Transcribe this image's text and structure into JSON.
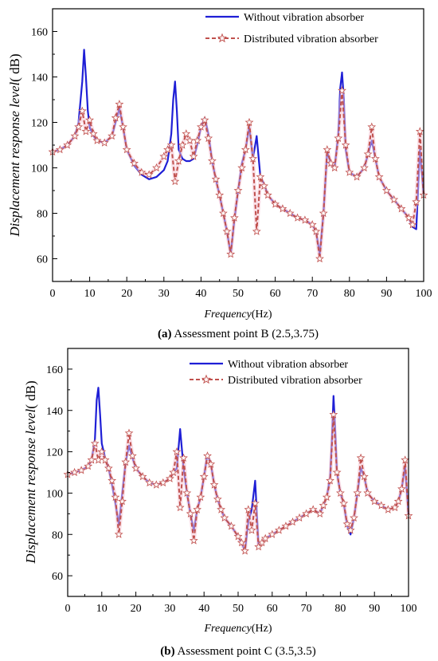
{
  "chart_data": [
    {
      "type": "line",
      "caption_label": "(a)",
      "caption_text": " Assessment point B (2.5,3.75)",
      "xlabel_italic": "Frequency",
      "xlabel_unit": "(Hz)",
      "ylabel": "Displacement  response level",
      "ylabel_unit": "( dB)",
      "xlim": [
        0,
        100
      ],
      "ylim": [
        50,
        170
      ],
      "xticks": [
        0,
        10,
        20,
        30,
        40,
        50,
        60,
        70,
        80,
        90,
        100
      ],
      "yticks": [
        60,
        80,
        100,
        120,
        140,
        160
      ],
      "legend_position": "top-right",
      "series": [
        {
          "name": "Without vibration absorber",
          "color": "#1f1fd6",
          "style": "solid",
          "x": [
            0,
            2,
            4,
            6,
            7,
            8,
            8.5,
            9,
            9.5,
            10,
            11,
            12,
            14,
            16,
            17,
            18,
            19,
            20,
            22,
            24,
            26,
            28,
            30,
            31,
            32,
            32.5,
            33,
            33.5,
            34,
            35,
            36,
            37,
            38,
            39,
            40,
            41,
            42,
            43,
            44,
            45,
            46,
            47,
            48,
            49,
            50,
            51,
            52,
            53,
            54,
            55,
            56,
            57,
            58,
            60,
            62,
            64,
            66,
            68,
            70,
            71,
            72,
            73,
            74,
            75,
            76,
            77,
            77.5,
            78,
            78.5,
            79,
            80,
            82,
            84,
            85,
            86,
            87,
            88,
            90,
            92,
            94,
            96,
            97,
            98,
            99,
            100
          ],
          "values": [
            107,
            108,
            110,
            114,
            120,
            138,
            152,
            140,
            125,
            118,
            114,
            112,
            111,
            114,
            120,
            126,
            118,
            108,
            101,
            97,
            95,
            96,
            99,
            103,
            115,
            130,
            138,
            125,
            108,
            104,
            103,
            103,
            104,
            110,
            118,
            122,
            115,
            103,
            95,
            88,
            80,
            72,
            62,
            77,
            90,
            102,
            108,
            118,
            104,
            114,
            96,
            93,
            88,
            84,
            82,
            80,
            78,
            77,
            75,
            72,
            62,
            80,
            107,
            102,
            100,
            115,
            135,
            142,
            130,
            108,
            98,
            96,
            100,
            106,
            112,
            104,
            96,
            90,
            86,
            82,
            78,
            74,
            73,
            108,
            88
          ]
        },
        {
          "name": "Distributed vibration absorber",
          "color": "#c0504d",
          "style": "dashed-star",
          "x": [
            0,
            2,
            4,
            6,
            7,
            8,
            9,
            10,
            11,
            12,
            14,
            16,
            17,
            18,
            19,
            20,
            22,
            24,
            26,
            28,
            30,
            31,
            32,
            33,
            34,
            35,
            36,
            37,
            38,
            39,
            40,
            41,
            42,
            43,
            44,
            45,
            46,
            47,
            48,
            49,
            50,
            51,
            52,
            53,
            54,
            55,
            56,
            57,
            58,
            60,
            62,
            64,
            66,
            68,
            70,
            71,
            72,
            73,
            74,
            75,
            76,
            77,
            78,
            79,
            80,
            82,
            84,
            85,
            86,
            87,
            88,
            90,
            92,
            94,
            96,
            97,
            98,
            99,
            100
          ],
          "values": [
            107,
            108,
            110,
            114,
            118,
            125,
            116,
            121,
            115,
            112,
            111,
            114,
            122,
            128,
            118,
            108,
            102,
            98,
            97,
            100,
            105,
            108,
            110,
            94,
            103,
            110,
            115,
            112,
            105,
            112,
            118,
            121,
            113,
            103,
            95,
            88,
            80,
            72,
            62,
            78,
            90,
            100,
            108,
            120,
            104,
            72,
            96,
            92,
            88,
            84,
            82,
            80,
            78,
            77,
            75,
            72,
            60,
            80,
            108,
            102,
            100,
            113,
            134,
            110,
            98,
            96,
            100,
            106,
            118,
            104,
            96,
            90,
            86,
            82,
            78,
            75,
            85,
            116,
            88
          ]
        }
      ]
    },
    {
      "type": "line",
      "caption_label": "(b)",
      "caption_text": " Assessment point C (3.5,3.5)",
      "xlabel_italic": "Frequency",
      "xlabel_unit": "(Hz)",
      "ylabel": "Displacement  response level",
      "ylabel_unit": "( dB)",
      "xlim": [
        0,
        100
      ],
      "ylim": [
        50,
        170
      ],
      "xticks": [
        0,
        10,
        20,
        30,
        40,
        50,
        60,
        70,
        80,
        90,
        100
      ],
      "yticks": [
        60,
        80,
        100,
        120,
        140,
        160
      ],
      "legend_position": "top-right",
      "series": [
        {
          "name": "Without vibration absorber",
          "color": "#1f1fd6",
          "style": "solid",
          "x": [
            0,
            2,
            4,
            6,
            7,
            8,
            8.5,
            9,
            9.5,
            10,
            11,
            12,
            13,
            14,
            15,
            16,
            17,
            18,
            19,
            20,
            22,
            24,
            26,
            28,
            30,
            31,
            32,
            33,
            34,
            35,
            36,
            37,
            38,
            39,
            40,
            41,
            42,
            43,
            44,
            45,
            46,
            48,
            50,
            51,
            52,
            53,
            54,
            55,
            56,
            57,
            58,
            60,
            62,
            64,
            66,
            68,
            70,
            72,
            74,
            75,
            76,
            77,
            77.5,
            78,
            78.5,
            79,
            80,
            81,
            82,
            83,
            84,
            85,
            86,
            87,
            88,
            90,
            92,
            94,
            96,
            97,
            98,
            99,
            100
          ],
          "values": [
            109,
            110,
            111,
            113,
            116,
            126,
            145,
            151,
            138,
            124,
            117,
            112,
            104,
            95,
            85,
            100,
            115,
            123,
            117,
            112,
            108,
            105,
            104,
            105,
            107,
            110,
            112,
            131,
            112,
            100,
            90,
            82,
            92,
            98,
            108,
            119,
            114,
            104,
            97,
            92,
            88,
            84,
            79,
            76,
            72,
            86,
            92,
            106,
            74,
            76,
            78,
            80,
            82,
            84,
            86,
            88,
            90,
            92,
            90,
            94,
            98,
            108,
            125,
            147,
            130,
            110,
            100,
            95,
            84,
            80,
            88,
            100,
            112,
            108,
            100,
            96,
            94,
            92,
            93,
            96,
            102,
            113,
            89
          ]
        },
        {
          "name": "Distributed vibration absorber",
          "color": "#c0504d",
          "style": "dashed-star",
          "x": [
            0,
            2,
            4,
            6,
            7,
            8,
            9,
            10,
            11,
            12,
            13,
            14,
            15,
            16,
            17,
            18,
            19,
            20,
            22,
            24,
            26,
            28,
            30,
            31,
            32,
            33,
            34,
            35,
            36,
            37,
            38,
            39,
            40,
            41,
            42,
            43,
            44,
            45,
            46,
            48,
            50,
            51,
            52,
            53,
            54,
            55,
            56,
            57,
            58,
            60,
            62,
            64,
            66,
            68,
            70,
            72,
            74,
            75,
            76,
            77,
            78,
            79,
            80,
            81,
            82,
            83,
            84,
            85,
            86,
            87,
            88,
            90,
            92,
            94,
            96,
            97,
            98,
            99,
            100
          ],
          "values": [
            109,
            110,
            111,
            113,
            116,
            124,
            116,
            120,
            116,
            112,
            106,
            98,
            80,
            96,
            115,
            129,
            118,
            112,
            108,
            105,
            104,
            105,
            107,
            110,
            120,
            93,
            117,
            100,
            90,
            77,
            92,
            98,
            108,
            118,
            114,
            104,
            97,
            92,
            88,
            84,
            79,
            76,
            72,
            92,
            82,
            95,
            74,
            76,
            78,
            80,
            82,
            84,
            86,
            88,
            90,
            92,
            90,
            94,
            98,
            106,
            138,
            110,
            100,
            95,
            85,
            82,
            88,
            100,
            117,
            108,
            100,
            96,
            94,
            92,
            93,
            96,
            102,
            116,
            89
          ]
        }
      ]
    }
  ]
}
